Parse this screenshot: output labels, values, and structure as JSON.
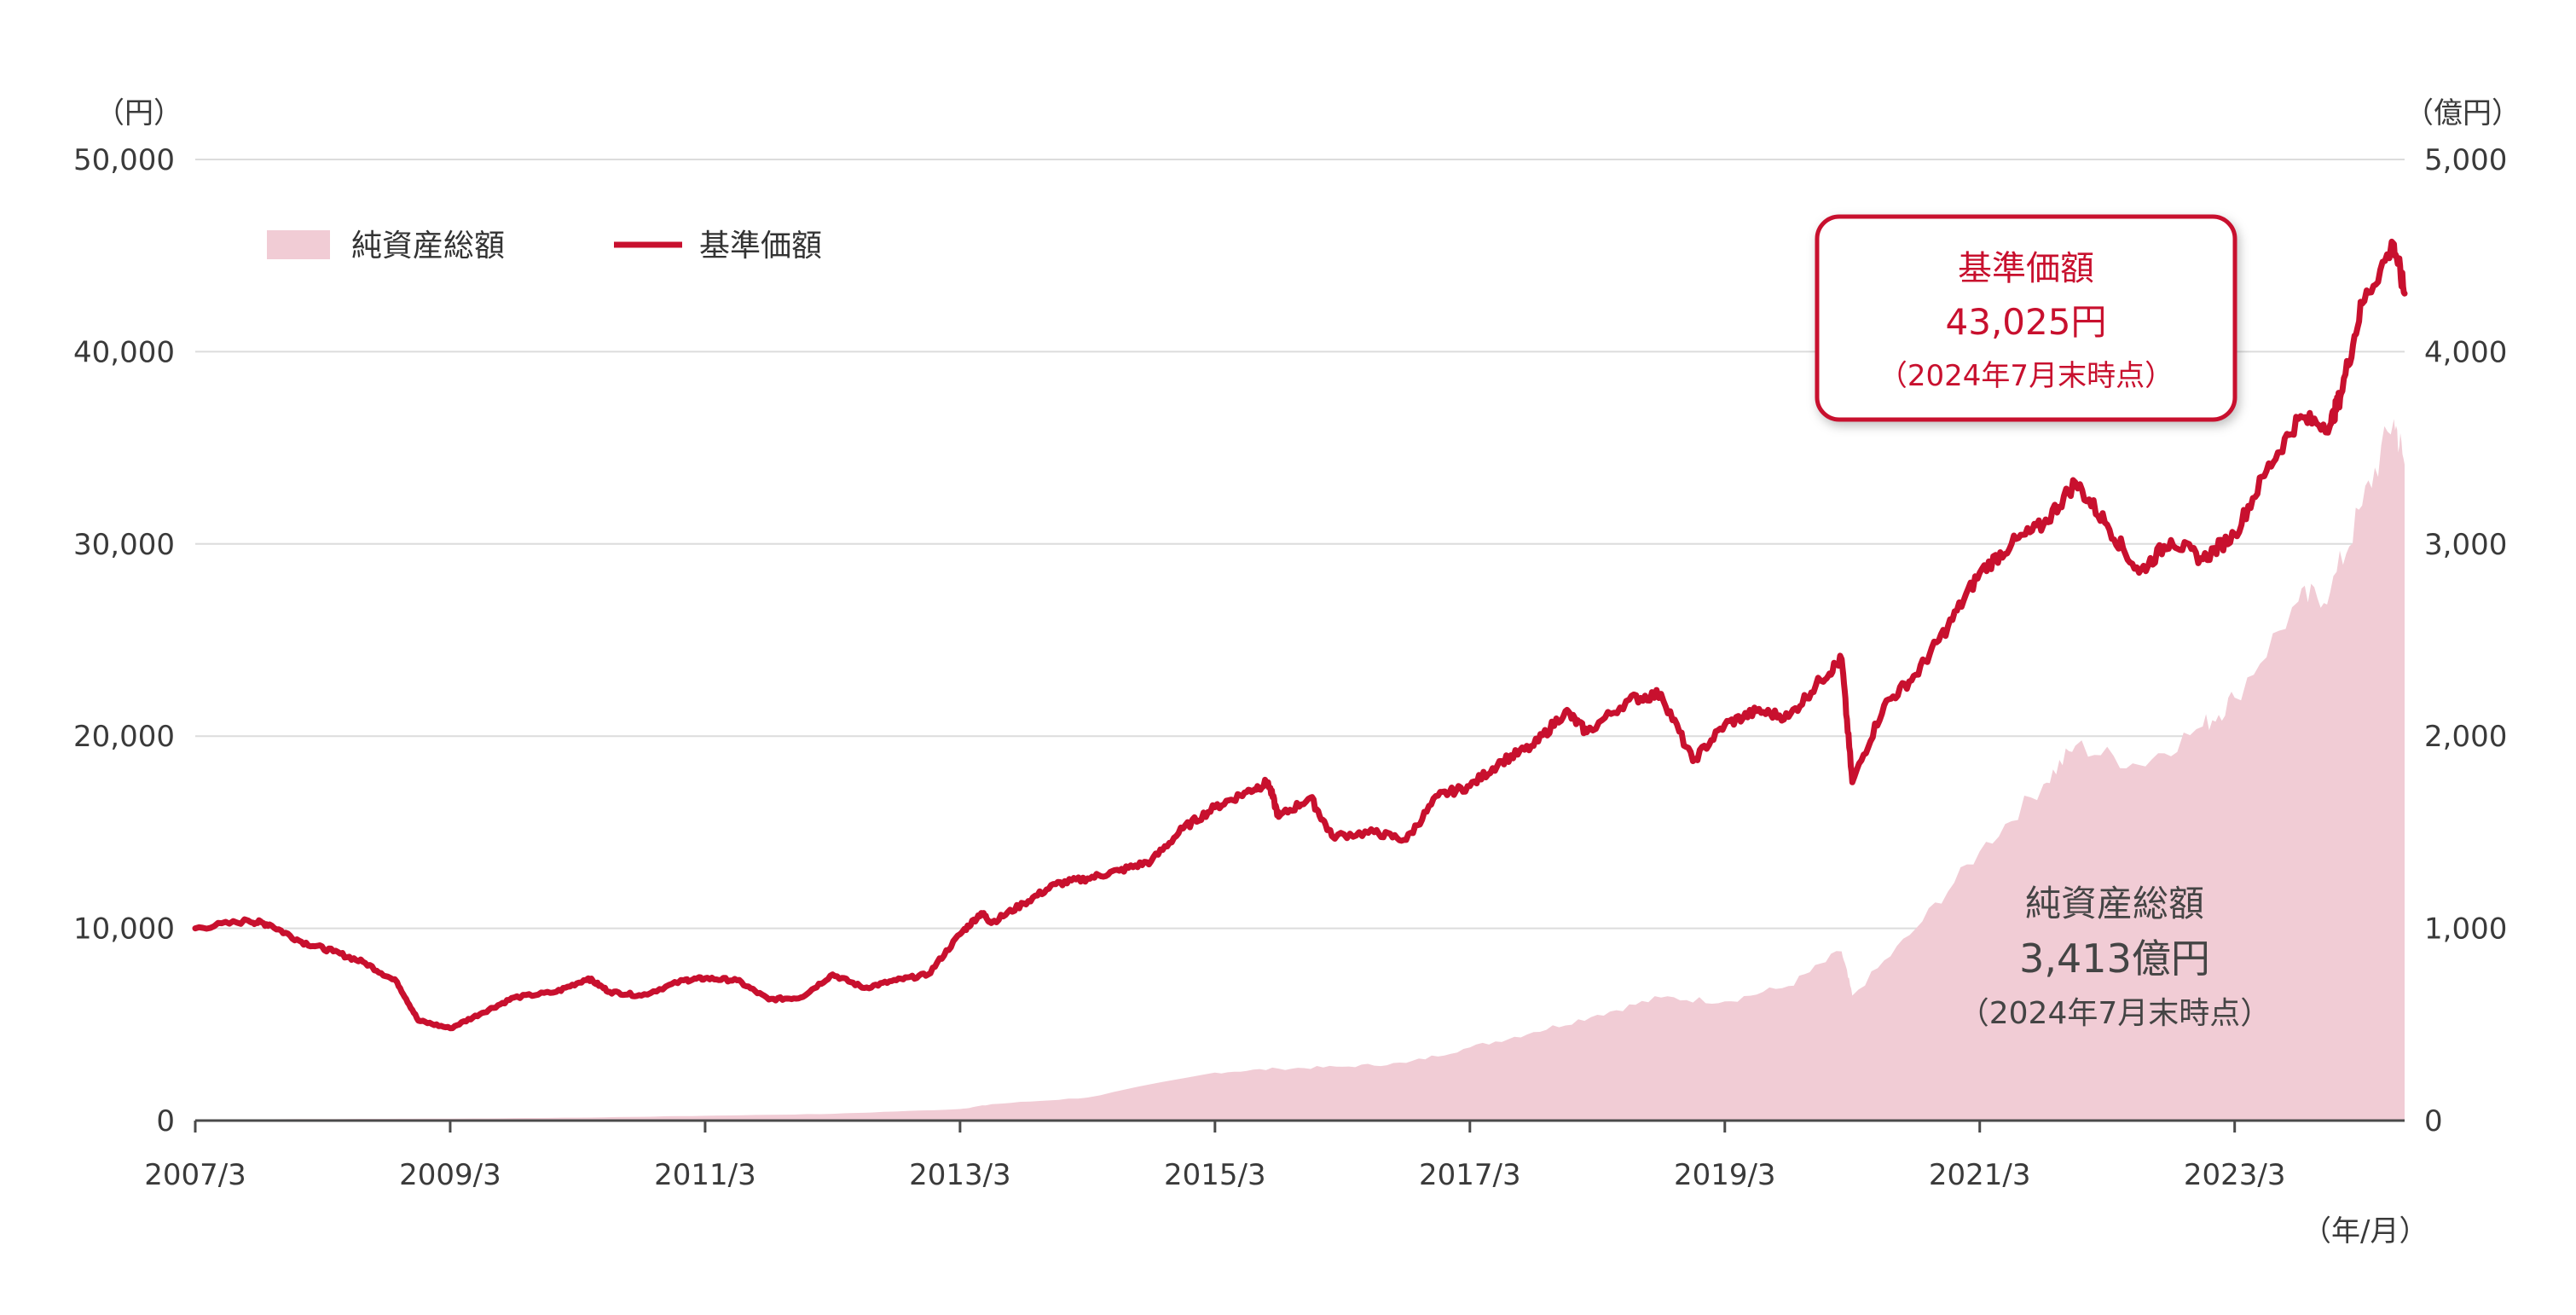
{
  "colors": {
    "price_line": "#c8102e",
    "net_assets_fill": "#f1ccd5",
    "grid": "#dcdcdc",
    "axis": "#4a4a4a",
    "text": "#3a3a3a"
  },
  "axis_labels": {
    "left_unit": "（円）",
    "right_unit": "（億円）",
    "x_unit": "（年/月）"
  },
  "legend": {
    "items": [
      {
        "label": "純資産総額",
        "type": "area",
        "color": "#f1ccd5"
      },
      {
        "label": "基準価額",
        "type": "line",
        "color": "#c8102e"
      }
    ]
  },
  "callouts": {
    "price": {
      "title": "基準価額",
      "value": "43,025円",
      "note": "（2024年7月末時点）"
    },
    "net_assets": {
      "title": "純資産総額",
      "value": "3,413億円",
      "note": "（2024年7月末時点）"
    }
  },
  "chart_data": {
    "type": "line",
    "x_labels": [
      "2007/3",
      "2009/3",
      "2011/3",
      "2013/3",
      "2015/3",
      "2017/3",
      "2019/3",
      "2021/3",
      "2023/3"
    ],
    "x_range": [
      "2007-03",
      "2024-07"
    ],
    "y_left": {
      "unit": "円",
      "range": [
        0,
        50000
      ],
      "ticks": [
        0,
        10000,
        20000,
        30000,
        40000,
        50000
      ],
      "tick_labels": [
        "0",
        "10,000",
        "20,000",
        "30,000",
        "40,000",
        "50,000"
      ]
    },
    "y_right": {
      "unit": "億円",
      "range": [
        0,
        5000
      ],
      "ticks": [
        0,
        1000,
        2000,
        3000,
        4000,
        5000
      ],
      "tick_labels": [
        "0",
        "1,000",
        "2,000",
        "3,000",
        "4,000",
        "5,000"
      ]
    },
    "grid": true,
    "legend_position": "top-left",
    "series": [
      {
        "name": "基準価額",
        "type": "line",
        "axis": "left",
        "points": [
          [
            "2007-03",
            10000
          ],
          [
            "2007-08",
            10400
          ],
          [
            "2007-10",
            10200
          ],
          [
            "2008-01",
            9300
          ],
          [
            "2008-04",
            8800
          ],
          [
            "2008-07",
            8200
          ],
          [
            "2008-10",
            7200
          ],
          [
            "2008-12",
            5200
          ],
          [
            "2009-03",
            4800
          ],
          [
            "2009-06",
            5600
          ],
          [
            "2009-09",
            6400
          ],
          [
            "2010-01",
            6700
          ],
          [
            "2010-04",
            7400
          ],
          [
            "2010-06",
            6700
          ],
          [
            "2010-09",
            6500
          ],
          [
            "2011-01",
            7300
          ],
          [
            "2011-03",
            7400
          ],
          [
            "2011-06",
            7300
          ],
          [
            "2011-09",
            6300
          ],
          [
            "2011-12",
            6400
          ],
          [
            "2012-03",
            7600
          ],
          [
            "2012-06",
            6900
          ],
          [
            "2012-09",
            7300
          ],
          [
            "2012-12",
            7600
          ],
          [
            "2013-03",
            9700
          ],
          [
            "2013-05",
            10800
          ],
          [
            "2013-06",
            10300
          ],
          [
            "2013-09",
            11300
          ],
          [
            "2013-12",
            12300
          ],
          [
            "2014-03",
            12600
          ],
          [
            "2014-06",
            13000
          ],
          [
            "2014-09",
            13500
          ],
          [
            "2014-12",
            15200
          ],
          [
            "2015-03",
            16300
          ],
          [
            "2015-06",
            17100
          ],
          [
            "2015-08",
            17600
          ],
          [
            "2015-09",
            15800
          ],
          [
            "2015-12",
            16800
          ],
          [
            "2016-02",
            14800
          ],
          [
            "2016-06",
            15000
          ],
          [
            "2016-09",
            14600
          ],
          [
            "2016-12",
            16900
          ],
          [
            "2017-03",
            17400
          ],
          [
            "2017-06",
            18700
          ],
          [
            "2017-09",
            19500
          ],
          [
            "2017-12",
            21300
          ],
          [
            "2018-02",
            20200
          ],
          [
            "2018-06",
            21900
          ],
          [
            "2018-09",
            22200
          ],
          [
            "2018-12",
            18700
          ],
          [
            "2019-03",
            20600
          ],
          [
            "2019-06",
            21300
          ],
          [
            "2019-09",
            21000
          ],
          [
            "2019-12",
            22900
          ],
          [
            "2020-02",
            24000
          ],
          [
            "2020-03",
            17600
          ],
          [
            "2020-06",
            21600
          ],
          [
            "2020-09",
            23200
          ],
          [
            "2020-12",
            25700
          ],
          [
            "2021-03",
            28500
          ],
          [
            "2021-06",
            30000
          ],
          [
            "2021-09",
            31000
          ],
          [
            "2021-12",
            33200
          ],
          [
            "2022-03",
            31000
          ],
          [
            "2022-06",
            28500
          ],
          [
            "2022-09",
            30200
          ],
          [
            "2022-12",
            29200
          ],
          [
            "2023-03",
            30500
          ],
          [
            "2023-06",
            33800
          ],
          [
            "2023-09",
            36500
          ],
          [
            "2023-12",
            36200
          ],
          [
            "2024-01",
            37800
          ],
          [
            "2024-03",
            42500
          ],
          [
            "2024-06",
            45600
          ],
          [
            "2024-07",
            43025
          ]
        ]
      },
      {
        "name": "純資産総額",
        "type": "area",
        "axis": "right",
        "points": [
          [
            "2007-03",
            5
          ],
          [
            "2008-03",
            8
          ],
          [
            "2009-03",
            10
          ],
          [
            "2010-03",
            15
          ],
          [
            "2011-03",
            25
          ],
          [
            "2012-03",
            35
          ],
          [
            "2013-03",
            60
          ],
          [
            "2013-06",
            85
          ],
          [
            "2014-03",
            120
          ],
          [
            "2015-03",
            250
          ],
          [
            "2015-09",
            270
          ],
          [
            "2016-03",
            280
          ],
          [
            "2016-09",
            300
          ],
          [
            "2017-03",
            380
          ],
          [
            "2017-09",
            460
          ],
          [
            "2018-03",
            550
          ],
          [
            "2018-09",
            640
          ],
          [
            "2019-03",
            620
          ],
          [
            "2019-09",
            700
          ],
          [
            "2020-02",
            880
          ],
          [
            "2020-03",
            650
          ],
          [
            "2020-09",
            1000
          ],
          [
            "2021-03",
            1400
          ],
          [
            "2021-09",
            1750
          ],
          [
            "2021-12",
            1950
          ],
          [
            "2022-06",
            1850
          ],
          [
            "2022-12",
            2050
          ],
          [
            "2023-03",
            2200
          ],
          [
            "2023-09",
            2700
          ],
          [
            "2023-12",
            2750
          ],
          [
            "2024-03",
            3200
          ],
          [
            "2024-06",
            3650
          ],
          [
            "2024-07",
            3413
          ]
        ]
      }
    ]
  }
}
